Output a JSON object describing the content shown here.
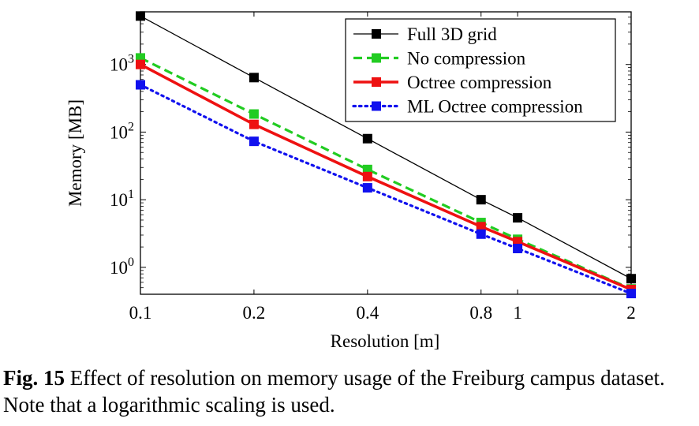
{
  "chart_data": {
    "type": "line",
    "xlabel": "Resolution [m]",
    "ylabel": "Memory [MB]",
    "x_scale": "log",
    "y_scale": "log",
    "xlim": [
      0.1,
      2
    ],
    "ylim": [
      0.4,
      6000
    ],
    "x_ticks": [
      0.1,
      0.2,
      0.4,
      0.8,
      1,
      2
    ],
    "x_tick_labels": [
      "0.1",
      "0.2",
      "0.4",
      "0.8",
      "1",
      "2"
    ],
    "y_ticks": [
      1,
      10,
      100,
      1000
    ],
    "y_tick_labels": [
      {
        "base": "10",
        "exp": "0"
      },
      {
        "base": "10",
        "exp": "1"
      },
      {
        "base": "10",
        "exp": "2"
      },
      {
        "base": "10",
        "exp": "3"
      }
    ],
    "x": [
      0.1,
      0.2,
      0.4,
      0.8,
      1,
      2
    ],
    "series": [
      {
        "name": "Full 3D grid",
        "values": [
          5200,
          640,
          80,
          10,
          5.4,
          0.68
        ],
        "color": "#000000",
        "line": "solid-thin"
      },
      {
        "name": "No compression",
        "values": [
          1250,
          185,
          28,
          4.6,
          2.6,
          0.48
        ],
        "color": "#22cc22",
        "line": "dashed"
      },
      {
        "name": "Octree compression",
        "values": [
          1000,
          130,
          22,
          4.0,
          2.4,
          0.47
        ],
        "color": "#ee1111",
        "line": "solid-thick"
      },
      {
        "name": "ML Octree compression",
        "values": [
          500,
          73,
          15,
          3.1,
          1.9,
          0.41
        ],
        "color": "#1111ee",
        "line": "dotted"
      }
    ],
    "legend_position": "top-right",
    "grid": false
  },
  "caption": {
    "label": "Fig. 15",
    "text": "Effect of resolution on memory usage of the Freiburg campus dataset. Note that a logarithmic scaling is used."
  }
}
